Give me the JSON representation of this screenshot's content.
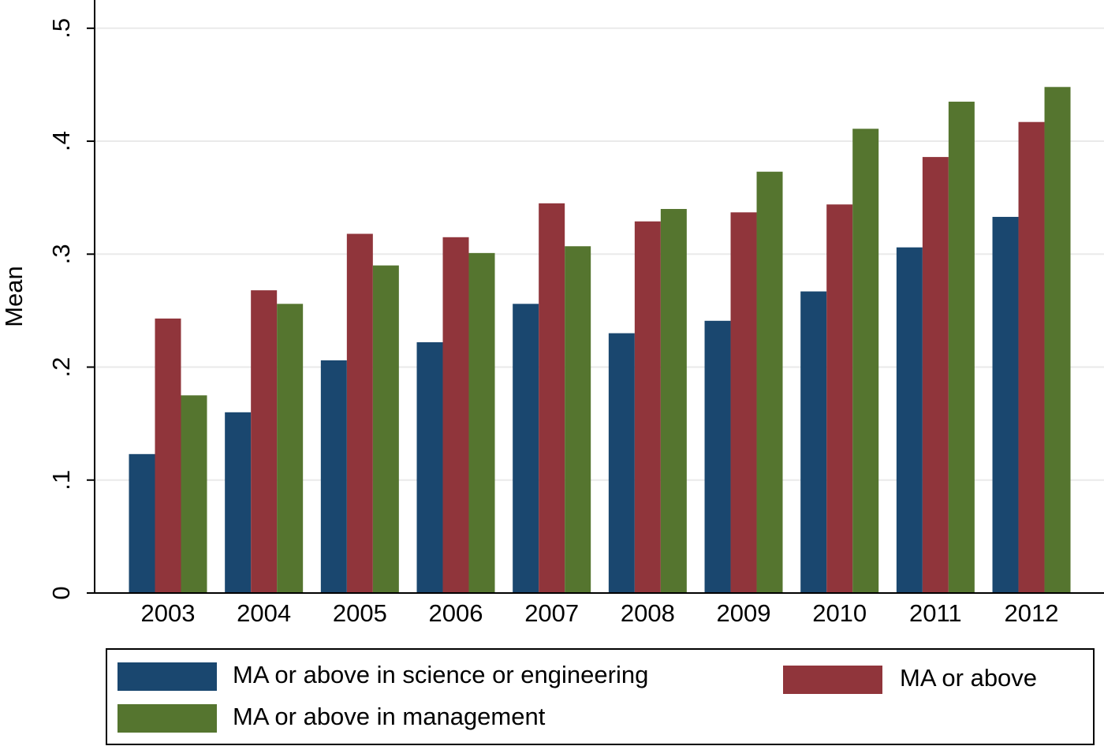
{
  "chart_data": {
    "type": "bar",
    "y_label": "Mean",
    "categories": [
      "2003",
      "2004",
      "2005",
      "2006",
      "2007",
      "2008",
      "2009",
      "2010",
      "2011",
      "2012"
    ],
    "series": [
      {
        "name": "MA or above in science or engineering",
        "color": "#1a476f",
        "values": [
          0.123,
          0.16,
          0.206,
          0.222,
          0.256,
          0.23,
          0.241,
          0.267,
          0.306,
          0.333
        ]
      },
      {
        "name": "MA or above",
        "color": "#90353b",
        "values": [
          0.243,
          0.268,
          0.318,
          0.315,
          0.345,
          0.329,
          0.337,
          0.344,
          0.386,
          0.417
        ]
      },
      {
        "name": "MA or above in management",
        "color": "#55752f",
        "values": [
          0.175,
          0.256,
          0.29,
          0.301,
          0.307,
          0.34,
          0.373,
          0.411,
          0.435,
          0.448
        ]
      }
    ],
    "ylim": [
      0,
      0.525
    ],
    "yticks": [
      0,
      {
        "value": 0.1,
        "label": ".1"
      },
      {
        "value": 0.2,
        "label": ".2"
      },
      {
        "value": 0.3,
        "label": ".3"
      },
      {
        "value": 0.4,
        "label": ".4"
      },
      {
        "value": 0.5,
        "label": ".5"
      }
    ],
    "grid": true
  }
}
